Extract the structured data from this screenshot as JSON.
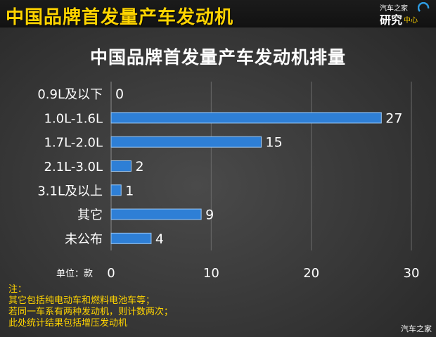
{
  "header": {
    "title": "中国品牌首发量产车发动机"
  },
  "brand": {
    "top_text": "汽车之家",
    "main_text": "研究",
    "sub_text": "中心"
  },
  "chart_data": {
    "type": "bar",
    "orientation": "horizontal",
    "title": "中国品牌首发量产车发动机排量",
    "categories": [
      "0.9L及以下",
      "1.0L-1.6L",
      "1.7L-2.0L",
      "2.1L-3.0L",
      "3.1L及以上",
      "其它",
      "未公布"
    ],
    "values": [
      0,
      27,
      15,
      2,
      1,
      9,
      4
    ],
    "xlim": [
      0,
      30
    ],
    "xticks": [
      0,
      10,
      20,
      30
    ],
    "unit_label": "单位：款",
    "bar_color": "#2e7fd6",
    "grid": true
  },
  "notes": {
    "heading": "注：",
    "lines": [
      "其它包括纯电动车和燃料电池车等；",
      "若同一车系有两种发动机，则计数两次；",
      "此处统计结果包括增压发动机"
    ]
  },
  "watermark": "汽车之家",
  "colors": {
    "header_text": "#ffd400",
    "note_text": "#ffd400",
    "bar": "#2e7fd6"
  }
}
